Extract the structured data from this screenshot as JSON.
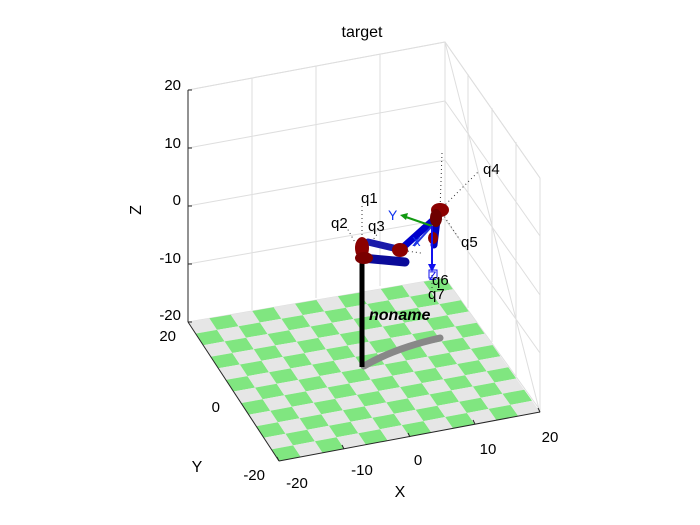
{
  "figure": {
    "title": "target",
    "robot_name": "noname"
  },
  "axes": {
    "x_label": "X",
    "y_label": "Y",
    "z_label": "Z",
    "x_ticks": [
      "-20",
      "-10",
      "0",
      "10",
      "20"
    ],
    "y_ticks": [
      "20",
      "0",
      "-20"
    ],
    "z_ticks": [
      "20",
      "10",
      "0",
      "-10",
      "-20"
    ],
    "x_range": [
      -20,
      20
    ],
    "y_range": [
      -20,
      20
    ],
    "z_range": [
      -20,
      20
    ],
    "grid": true
  },
  "joints": {
    "q1": "q1",
    "q2": "q2",
    "q3": "q3",
    "q4": "q4",
    "q5": "q5",
    "q6": "q6",
    "q7": "q7"
  },
  "frame_labels": {
    "x": "X",
    "y": "Y",
    "z": "Z"
  },
  "colors": {
    "floor_light": "#e6e6e6",
    "floor_green": "#80e680",
    "link": "#0000cc",
    "joint": "#8b0000",
    "shadow": "#888888",
    "grid": "#dedede",
    "frame_x": "#2233dd",
    "frame_y": "#119911",
    "frame_z": "#1111ee"
  }
}
